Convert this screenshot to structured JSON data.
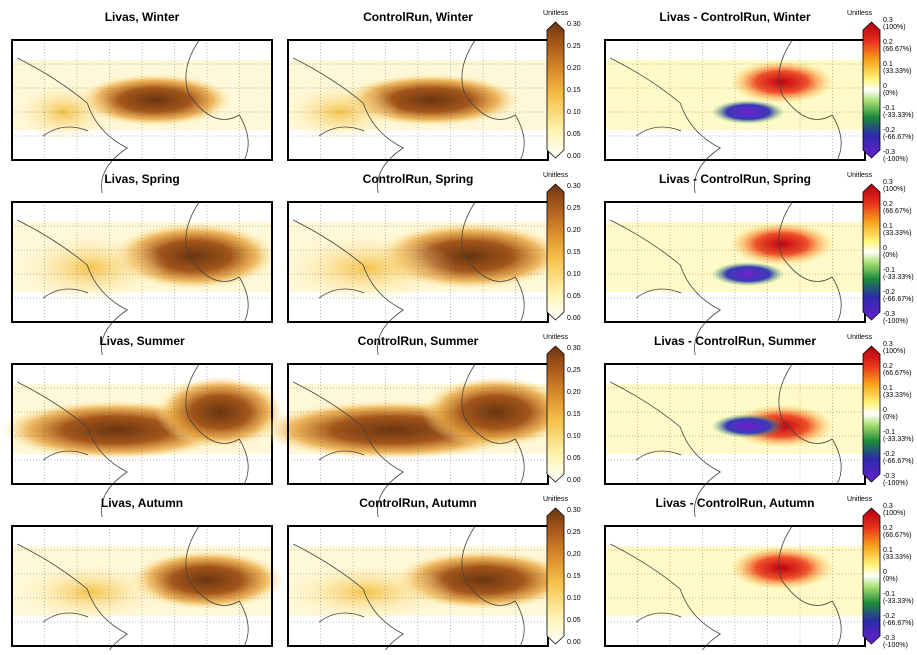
{
  "rows": [
    {
      "titles": [
        "Livas, Winter",
        "ControlRun, Winter",
        "Livas - ControlRun, Winter"
      ]
    },
    {
      "titles": [
        "Livas, Spring",
        "ControlRun, Spring",
        "Livas - ControlRun, Spring"
      ]
    },
    {
      "titles": [
        "Livas, Summer",
        "ControlRun, Summer",
        "Livas - ControlRun, Summer"
      ]
    },
    {
      "titles": [
        "Livas, Autumn",
        "ControlRun, Autumn",
        "Livas - ControlRun, Autumn"
      ]
    }
  ],
  "abs_colorbar": {
    "title": "Unitless",
    "ticks": [
      "0.30",
      "0.25",
      "0.20",
      "0.15",
      "0.10",
      "0.05",
      "0.00"
    ]
  },
  "diff_colorbar": {
    "title": "Unitless",
    "ticks": [
      [
        "0.3",
        "(100%)"
      ],
      [
        "0.2",
        "(66.67%)"
      ],
      [
        "0.1",
        "(33.33%)"
      ],
      [
        "0",
        "(0%)"
      ],
      [
        "-0.1",
        "(-33.33%)"
      ],
      [
        "-0.2",
        "(-66.67%)"
      ],
      [
        "-0.3",
        "(-100%)"
      ]
    ]
  }
}
